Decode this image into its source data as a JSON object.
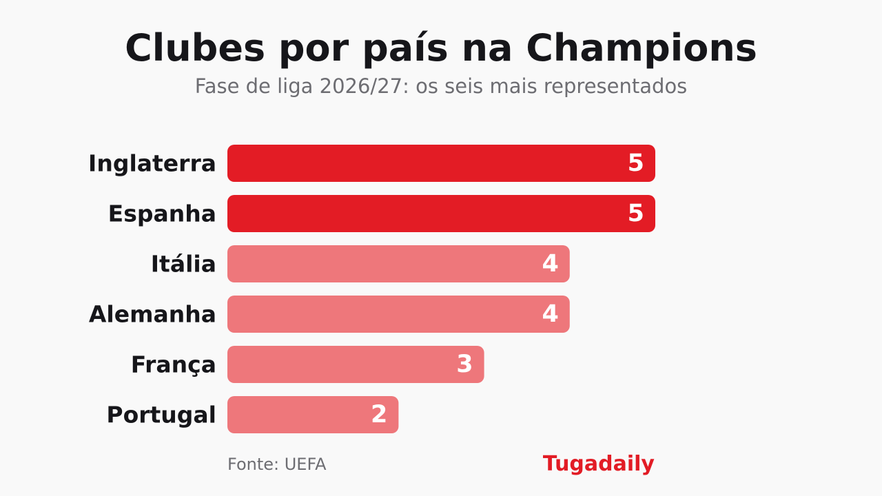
{
  "header": {
    "title": "Clubes por país na Champions",
    "subtitle": "Fase de liga 2026/27: os seis mais representados"
  },
  "footer": {
    "source": "Fonte: UEFA",
    "brand": "Tugadaily"
  },
  "colors": {
    "highlight": "#e31c25",
    "regular": "#ee777b",
    "label": "#16161a",
    "value_text": "#ffffff"
  },
  "chart_data": {
    "type": "bar",
    "orientation": "horizontal",
    "title": "Clubes por país na Champions",
    "subtitle": "Fase de liga 2026/27: os seis mais representados",
    "categories": [
      "Inglaterra",
      "Espanha",
      "Itália",
      "Alemanha",
      "França",
      "Portugal"
    ],
    "values": [
      5,
      5,
      4,
      4,
      3,
      2
    ],
    "highlighted": [
      true,
      true,
      false,
      false,
      false,
      false
    ],
    "xlim": [
      0,
      5
    ],
    "grid": false,
    "legend": "none",
    "data_labels": true
  }
}
